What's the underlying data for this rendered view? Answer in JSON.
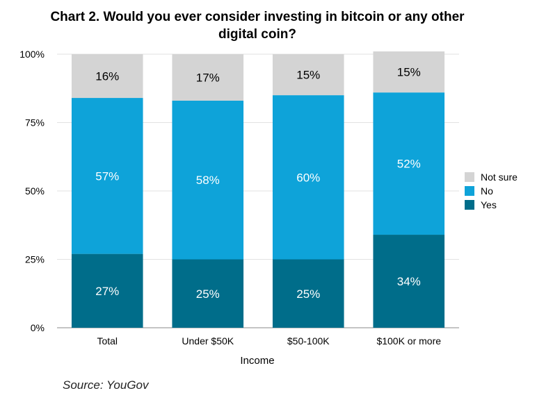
{
  "chart_data": {
    "type": "bar",
    "stacked": true,
    "title": "Chart 2. Would you ever consider investing in bitcoin or any other digital coin?",
    "xlabel": "Income",
    "ylabel": "",
    "categories": [
      "Total",
      "Under $50K",
      "$50-100K",
      "$100K or more"
    ],
    "ylim": [
      0,
      100
    ],
    "yticks": [
      "0%",
      "25%",
      "50%",
      "75%",
      "100%"
    ],
    "grid": true,
    "legend_position": "right",
    "series": [
      {
        "name": "Yes",
        "color": "#006d8a",
        "values": [
          27,
          25,
          25,
          34
        ]
      },
      {
        "name": "No",
        "color": "#0ea3d9",
        "values": [
          57,
          58,
          60,
          52
        ]
      },
      {
        "name": "Not sure",
        "color": "#d4d4d4",
        "values": [
          16,
          17,
          15,
          15
        ]
      }
    ],
    "value_suffix": "%"
  },
  "source": "Source: YouGov"
}
